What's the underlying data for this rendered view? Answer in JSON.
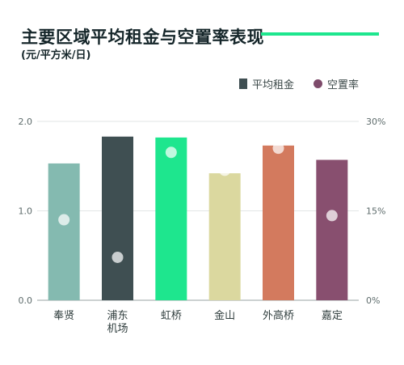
{
  "header": {
    "title": "主要区域平均租金与空置率表现",
    "subtitle": "(元/平方米/日)"
  },
  "legend": {
    "bar_label": "平均租金",
    "dot_label": "空置率"
  },
  "colors": {
    "accent": "#1ee68e",
    "vacancy_dot": "#7e4b6b",
    "rent_legend": "#3f4f52"
  },
  "chart_data": {
    "type": "bar",
    "categories": [
      "奉贤",
      "浦东\n机场",
      "虹桥",
      "金山",
      "外高桥",
      "嘉定"
    ],
    "series": [
      {
        "name": "平均租金",
        "axis": "left",
        "values": [
          1.53,
          1.83,
          1.82,
          1.42,
          1.73,
          1.57
        ],
        "colors": [
          "#84bab0",
          "#3f4f52",
          "#1ee68e",
          "#dbd89f",
          "#d37a5e",
          "#884f6f"
        ]
      },
      {
        "name": "空置率",
        "axis": "right",
        "mark": "dot",
        "values": [
          13.5,
          7.2,
          24.8,
          21.8,
          25.5,
          14.2
        ]
      }
    ],
    "ylim": [
      0,
      2.0
    ],
    "yticks": [
      "0.0",
      "1.0",
      "2.0"
    ],
    "y2lim": [
      0,
      30
    ],
    "y2ticks": [
      "0%",
      "15%",
      "30%"
    ],
    "grid": true
  }
}
